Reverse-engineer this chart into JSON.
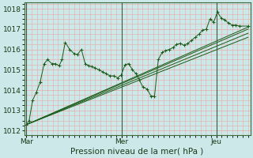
{
  "background_color": "#cce8e8",
  "grid_color": "#e8a8a8",
  "line_color": "#1a5c1a",
  "ylim": [
    1011.8,
    1018.3
  ],
  "yticks": [
    1012,
    1013,
    1014,
    1015,
    1016,
    1017,
    1018
  ],
  "xlabel": "Pression niveau de la mer( hPa )",
  "xtick_labels": [
    "Mar",
    "Mer",
    "Jeu"
  ],
  "xtick_positions": [
    0.0,
    0.4286,
    0.8571
  ],
  "vline_positions": [
    0.0,
    0.4286,
    0.8571
  ],
  "tick_fontsize": 6.5,
  "label_fontsize": 7.5,
  "detailed_series": [
    [
      0.0,
      1012.3
    ],
    [
      0.012,
      1012.5
    ],
    [
      0.028,
      1013.5
    ],
    [
      0.045,
      1013.9
    ],
    [
      0.062,
      1014.4
    ],
    [
      0.08,
      1015.3
    ],
    [
      0.095,
      1015.5
    ],
    [
      0.115,
      1015.3
    ],
    [
      0.13,
      1015.3
    ],
    [
      0.148,
      1015.2
    ],
    [
      0.16,
      1015.5
    ],
    [
      0.175,
      1016.35
    ],
    [
      0.195,
      1016.0
    ],
    [
      0.215,
      1015.8
    ],
    [
      0.23,
      1015.75
    ],
    [
      0.248,
      1016.0
    ],
    [
      0.265,
      1015.3
    ],
    [
      0.28,
      1015.2
    ],
    [
      0.295,
      1015.15
    ],
    [
      0.31,
      1015.1
    ],
    [
      0.325,
      1015.0
    ],
    [
      0.345,
      1014.9
    ],
    [
      0.36,
      1014.8
    ],
    [
      0.378,
      1014.7
    ],
    [
      0.395,
      1014.7
    ],
    [
      0.412,
      1014.6
    ],
    [
      0.428,
      1014.75
    ],
    [
      0.445,
      1015.25
    ],
    [
      0.462,
      1015.3
    ],
    [
      0.478,
      1015.0
    ],
    [
      0.495,
      1014.8
    ],
    [
      0.51,
      1014.5
    ],
    [
      0.525,
      1014.15
    ],
    [
      0.545,
      1014.05
    ],
    [
      0.562,
      1013.7
    ],
    [
      0.578,
      1013.7
    ],
    [
      0.595,
      1015.5
    ],
    [
      0.612,
      1015.85
    ],
    [
      0.628,
      1015.95
    ],
    [
      0.645,
      1016.0
    ],
    [
      0.662,
      1016.1
    ],
    [
      0.678,
      1016.25
    ],
    [
      0.695,
      1016.3
    ],
    [
      0.712,
      1016.2
    ],
    [
      0.728,
      1016.3
    ],
    [
      0.745,
      1016.45
    ],
    [
      0.762,
      1016.6
    ],
    [
      0.778,
      1016.75
    ],
    [
      0.795,
      1016.95
    ],
    [
      0.812,
      1017.0
    ],
    [
      0.828,
      1017.5
    ],
    [
      0.845,
      1017.35
    ],
    [
      0.862,
      1017.85
    ],
    [
      0.878,
      1017.55
    ],
    [
      0.895,
      1017.45
    ],
    [
      0.912,
      1017.3
    ],
    [
      0.928,
      1017.2
    ],
    [
      0.945,
      1017.2
    ],
    [
      0.962,
      1017.15
    ],
    [
      1.0,
      1017.15
    ]
  ],
  "trend_lines": [
    [
      [
        0.0,
        1012.3
      ],
      [
        1.0,
        1017.1
      ]
    ],
    [
      [
        0.0,
        1012.3
      ],
      [
        1.0,
        1017.0
      ]
    ],
    [
      [
        0.0,
        1012.3
      ],
      [
        1.0,
        1016.8
      ]
    ],
    [
      [
        0.0,
        1012.3
      ],
      [
        1.0,
        1016.6
      ]
    ]
  ]
}
